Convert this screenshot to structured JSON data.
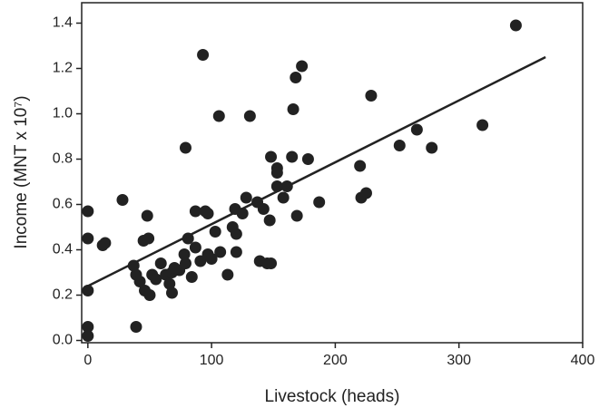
{
  "chart_data": {
    "type": "scatter",
    "x_label": "Livestock (heads)",
    "y_label": "Income (MNT x 10⁷)",
    "xlim": [
      -5,
      400
    ],
    "ylim": [
      -0.01,
      1.49
    ],
    "xticks": [
      0,
      100,
      200,
      300,
      400
    ],
    "yticks": [
      {
        "value": 0,
        "label": "0.0"
      },
      0.2,
      0.4,
      0.6,
      0.8,
      {
        "value": 1,
        "label": "1.0"
      },
      1.2,
      1.4
    ],
    "color": "#222222",
    "x": [
      0,
      0,
      0,
      0,
      0,
      12,
      14,
      28,
      37,
      39,
      39,
      42,
      45,
      48,
      49,
      46,
      50,
      52,
      55,
      59,
      63,
      66,
      68,
      68,
      70,
      74,
      78,
      79,
      79,
      81,
      84,
      87,
      87,
      91,
      93,
      95,
      97,
      97,
      100,
      103,
      106,
      107,
      113,
      117,
      119,
      120,
      120,
      125,
      128,
      131,
      137,
      139,
      142,
      145,
      147,
      148,
      148,
      153,
      153,
      153,
      158,
      161,
      165,
      166,
      168,
      169,
      173,
      178,
      187,
      220,
      221,
      225,
      229,
      252,
      266,
      278,
      319,
      346
    ],
    "y": [
      0.57,
      0.45,
      0.22,
      0.06,
      0.02,
      0.42,
      0.43,
      0.62,
      0.33,
      0.29,
      0.06,
      0.26,
      0.44,
      0.55,
      0.45,
      0.22,
      0.2,
      0.29,
      0.27,
      0.34,
      0.29,
      0.25,
      0.21,
      0.3,
      0.32,
      0.31,
      0.38,
      0.34,
      0.85,
      0.45,
      0.28,
      0.57,
      0.41,
      0.35,
      1.26,
      0.57,
      0.56,
      0.38,
      0.36,
      0.48,
      0.99,
      0.39,
      0.29,
      0.5,
      0.58,
      0.39,
      0.47,
      0.56,
      0.63,
      0.99,
      0.61,
      0.35,
      0.58,
      0.34,
      0.53,
      0.81,
      0.34,
      0.76,
      0.74,
      0.68,
      0.63,
      0.68,
      0.81,
      1.02,
      1.16,
      0.55,
      1.21,
      0.8,
      0.61,
      0.77,
      0.63,
      0.65,
      1.08,
      0.86,
      0.93,
      0.85,
      0.95,
      1.39
    ],
    "trend_line": {
      "x": [
        0,
        370
      ],
      "y": [
        0.24,
        1.25
      ]
    }
  }
}
